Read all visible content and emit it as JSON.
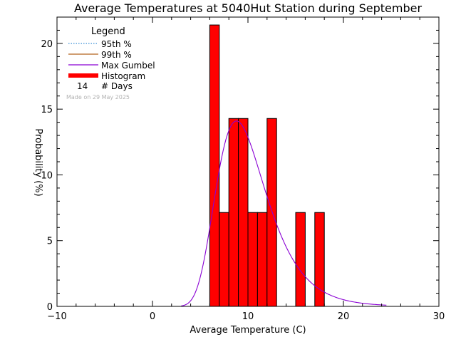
{
  "chart_data": {
    "type": "bar",
    "title": "Average Temperatures at 5040Hut Station during September",
    "xlabel": "Average Temperature (C)",
    "ylabel": "Probability (%)",
    "xlim": [
      -10,
      30
    ],
    "ylim": [
      0,
      22
    ],
    "x_ticks": [
      -10,
      0,
      10,
      20,
      30
    ],
    "y_ticks": [
      0,
      5,
      10,
      15,
      20
    ],
    "grid": false,
    "bin_width": 1,
    "histogram": [
      {
        "x0": 6,
        "value": 21.4
      },
      {
        "x0": 7,
        "value": 7.14
      },
      {
        "x0": 8,
        "value": 14.29
      },
      {
        "x0": 9,
        "value": 14.29
      },
      {
        "x0": 10,
        "value": 7.14
      },
      {
        "x0": 11,
        "value": 7.14
      },
      {
        "x0": 12,
        "value": 14.29
      },
      {
        "x0": 15,
        "value": 7.14
      },
      {
        "x0": 17,
        "value": 7.14
      }
    ],
    "gumbel_curve": {
      "name": "Max Gumbel",
      "mode": 8.8,
      "scale": 2.6,
      "x_range": [
        3.0,
        24.5
      ],
      "peak_value": 14.1
    },
    "legend": {
      "title": "Legend",
      "position": "top-left",
      "entries": [
        {
          "label": "95th %",
          "color": "#3a8fd6",
          "style": "dotted"
        },
        {
          "label": "99th %",
          "color": "#b5651d",
          "style": "solid"
        },
        {
          "label": "Max Gumbel",
          "color": "#8a00d4",
          "style": "solid"
        },
        {
          "label": "Histogram",
          "color": "#ff0000",
          "style": "thick"
        }
      ],
      "days_count": "14",
      "days_label": "# Days"
    },
    "watermark": "Made on 29 May 2025",
    "colors": {
      "bar_fill": "#ff0000",
      "bar_stroke": "#000000",
      "curve": "#8a00d4",
      "axis": "#000000"
    }
  }
}
